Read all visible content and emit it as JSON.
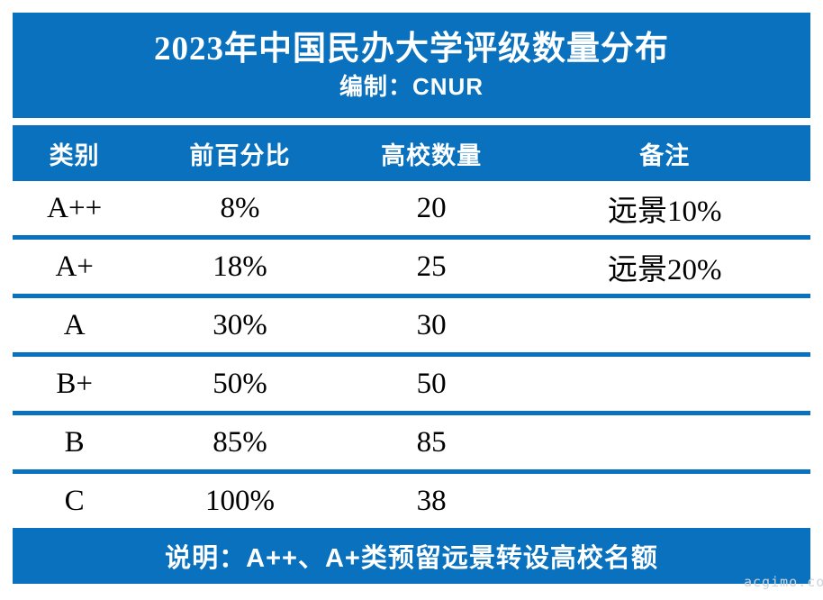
{
  "colors": {
    "accent_blue": "#0971BD",
    "row_background": "#FFFFFF",
    "header_text": "#FFFFFF",
    "data_text": "#000000"
  },
  "chart_data": {
    "type": "table",
    "title": "2023年中国民办大学评级数量分布",
    "subtitle": "编制：CNUR",
    "columns": [
      "类别",
      "前百分比",
      "高校数量",
      "备注"
    ],
    "rows": [
      [
        "A++",
        "8%",
        "20",
        "远景10%"
      ],
      [
        "A+",
        "18%",
        "25",
        "远景20%"
      ],
      [
        "A",
        "30%",
        "30",
        ""
      ],
      [
        "B+",
        "50%",
        "50",
        ""
      ],
      [
        "B",
        "85%",
        "85",
        ""
      ],
      [
        "C",
        "100%",
        "38",
        ""
      ]
    ],
    "footnote": "说明：A++、A+类预留远景转设高校名额"
  },
  "watermark": "acgimo.co"
}
